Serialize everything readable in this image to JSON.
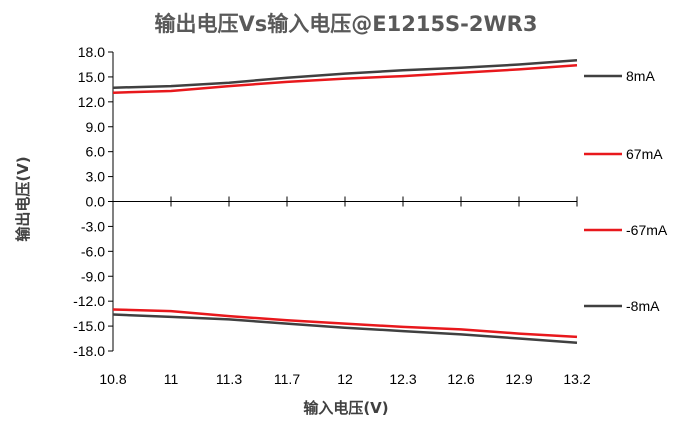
{
  "chart_data": {
    "type": "line",
    "title": "输出电压Vs输入电压@E1215S-2WR3",
    "xlabel": "输入电压(V)",
    "ylabel": "输出电压(V)",
    "categories": [
      "10.8",
      "11",
      "11.3",
      "11.7",
      "12",
      "12.3",
      "12.6",
      "12.9",
      "13.2"
    ],
    "ylim": [
      -18.0,
      18.0
    ],
    "y_ticks": [
      "18.0",
      "15.0",
      "12.0",
      "9.0",
      "6.0",
      "3.0",
      "0.0",
      "-3.0",
      "-6.0",
      "-9.0",
      "-12.0",
      "-15.0",
      "-18.0"
    ],
    "grid": false,
    "legend_position": "right",
    "series": [
      {
        "name": "8mA",
        "color": "#404040",
        "values": [
          13.7,
          13.9,
          14.3,
          14.9,
          15.4,
          15.8,
          16.1,
          16.5,
          17.0
        ]
      },
      {
        "name": "67mA",
        "color": "#e8181c",
        "values": [
          13.1,
          13.3,
          13.9,
          14.4,
          14.8,
          15.1,
          15.5,
          15.9,
          16.4
        ]
      },
      {
        "name": "-67mA",
        "color": "#e8181c",
        "values": [
          -13.0,
          -13.2,
          -13.8,
          -14.3,
          -14.7,
          -15.1,
          -15.4,
          -15.9,
          -16.3
        ]
      },
      {
        "name": "-8mA",
        "color": "#404040",
        "values": [
          -13.6,
          -13.9,
          -14.2,
          -14.7,
          -15.2,
          -15.6,
          -16.0,
          -16.5,
          -17.0
        ]
      }
    ]
  }
}
